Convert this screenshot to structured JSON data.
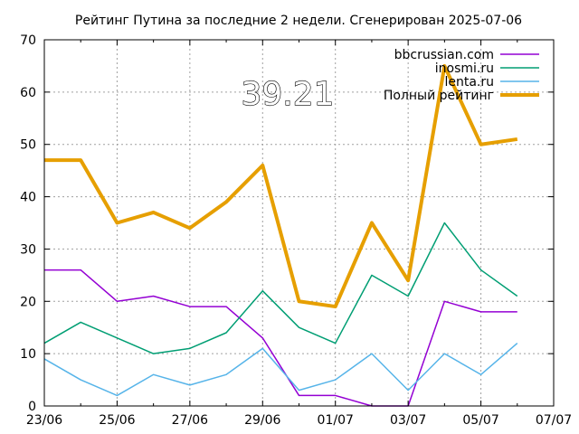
{
  "chart_data": {
    "type": "line",
    "title": "Рейтинг Путина за последние 2 недели. Сгенерирован 2025-07-06",
    "x_ticks": [
      "23/06",
      "25/06",
      "27/06",
      "29/06",
      "01/07",
      "03/07",
      "05/07",
      "07/07"
    ],
    "x_range": [
      "2025-06-23",
      "2025-07-07"
    ],
    "x": [
      "2025-06-23",
      "2025-06-24",
      "2025-06-25",
      "2025-06-26",
      "2025-06-27",
      "2025-06-28",
      "2025-06-29",
      "2025-06-30",
      "2025-07-01",
      "2025-07-02",
      "2025-07-03",
      "2025-07-04",
      "2025-07-05",
      "2025-07-06"
    ],
    "ylim": [
      0,
      70
    ],
    "y_ticks": [
      0,
      10,
      20,
      30,
      40,
      50,
      60,
      70
    ],
    "grid": true,
    "legend_position": "top-right",
    "series": [
      {
        "name": "bbcrussian.com",
        "color": "#9400d3",
        "width": 1.5,
        "values": [
          26,
          26,
          20,
          21,
          19,
          19,
          13,
          2,
          2,
          0,
          0,
          20,
          18,
          18
        ]
      },
      {
        "name": "inosmi.ru",
        "color": "#009e73",
        "width": 1.5,
        "values": [
          12,
          16,
          13,
          10,
          11,
          14,
          22,
          15,
          12,
          25,
          21,
          35,
          26,
          21
        ]
      },
      {
        "name": "lenta.ru",
        "color": "#56b4e9",
        "width": 1.5,
        "values": [
          9,
          5,
          2,
          6,
          4,
          6,
          11,
          3,
          5,
          10,
          3,
          10,
          6,
          12
        ]
      },
      {
        "name": "Полный рейтинг",
        "color": "#e69f00",
        "width": 4,
        "values": [
          47,
          47,
          35,
          37,
          34,
          39,
          46,
          20,
          19,
          35,
          24,
          65,
          50,
          51
        ]
      }
    ],
    "annotation": "39.21"
  }
}
